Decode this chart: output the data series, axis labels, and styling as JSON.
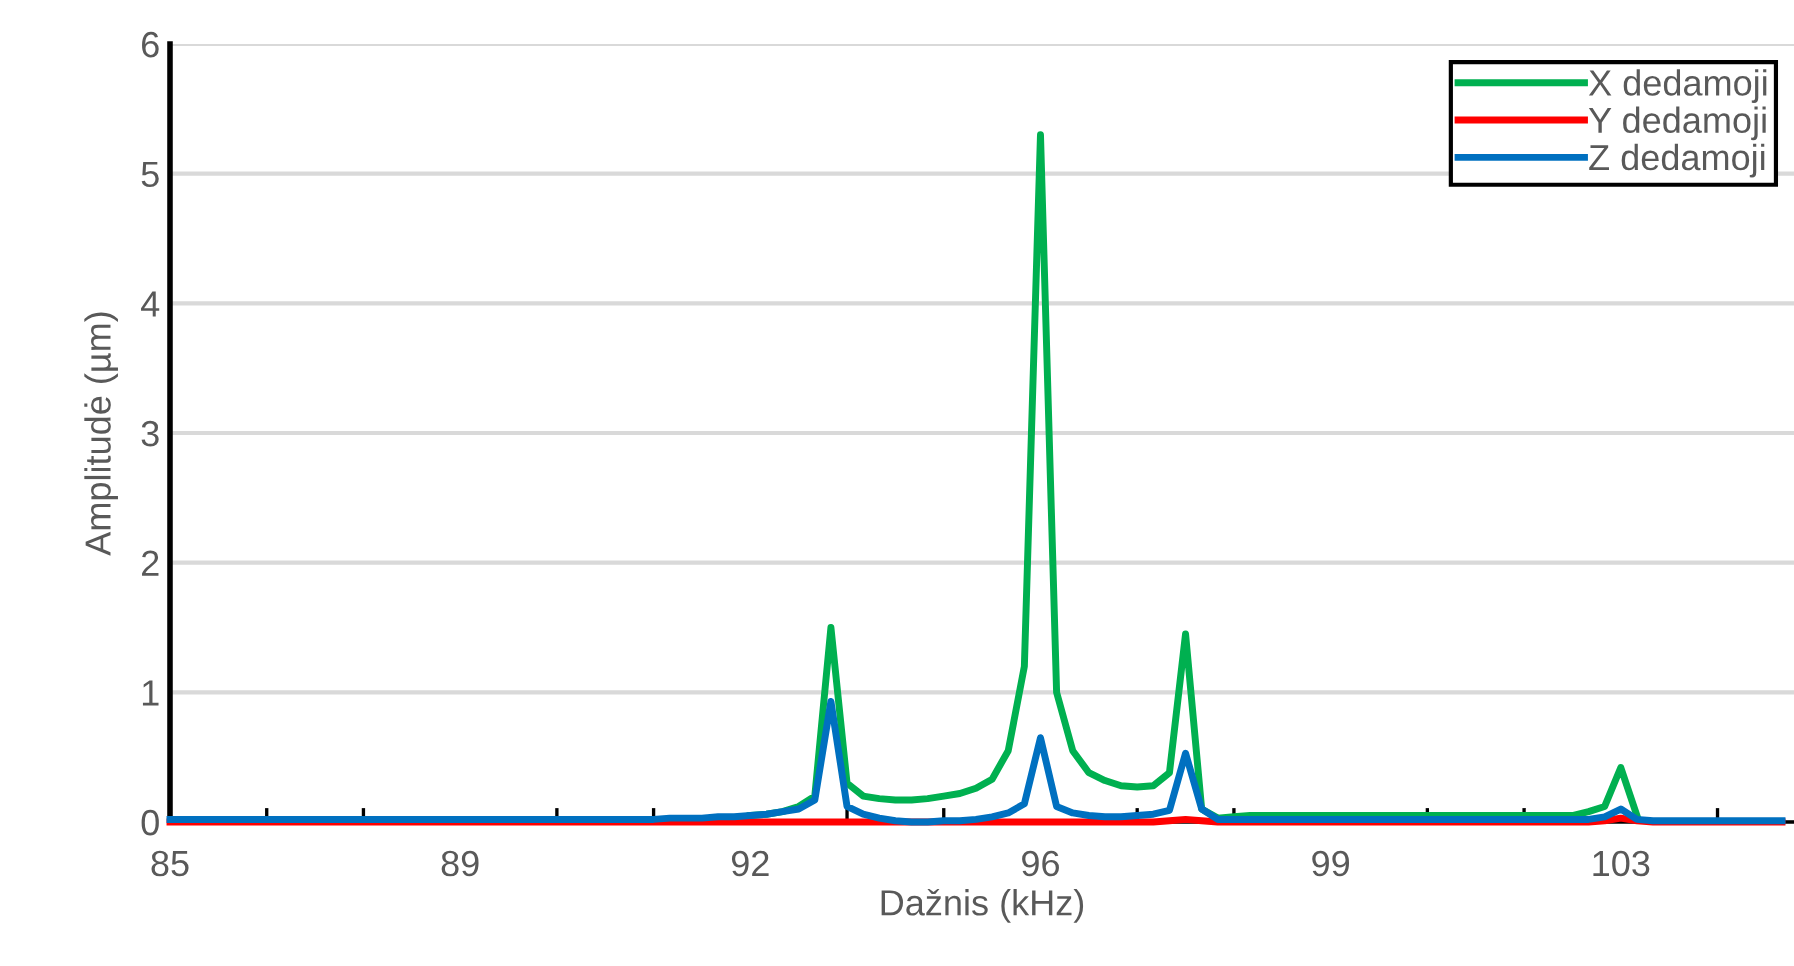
{
  "chart_data": {
    "type": "line",
    "xlabel": "Dažnis (kHz)",
    "ylabel": "Amplitudė (µm)",
    "categories": [
      "85",
      null,
      null,
      null,
      null,
      null,
      null,
      null,
      null,
      null,
      null,
      null,
      null,
      null,
      null,
      null,
      null,
      null,
      "89",
      null,
      null,
      null,
      null,
      null,
      null,
      null,
      null,
      null,
      null,
      null,
      null,
      null,
      null,
      null,
      null,
      null,
      "92",
      null,
      null,
      null,
      null,
      null,
      null,
      null,
      null,
      null,
      null,
      null,
      null,
      null,
      null,
      null,
      null,
      null,
      "96",
      null,
      null,
      null,
      null,
      null,
      null,
      null,
      null,
      null,
      null,
      null,
      null,
      null,
      null,
      null,
      null,
      null,
      "99",
      null,
      null,
      null,
      null,
      null,
      null,
      null,
      null,
      null,
      null,
      null,
      null,
      null,
      null,
      null,
      null,
      null,
      "103",
      null,
      null,
      null,
      null,
      null,
      null,
      null,
      null,
      null,
      null
    ],
    "ylim": [
      0,
      6
    ],
    "yticks": [
      0,
      1,
      2,
      3,
      4,
      5,
      6
    ],
    "grid": "y",
    "legend": "top right",
    "marker": "none",
    "line_style": "solid",
    "series": [
      {
        "name": "X dedamoji",
        "color": "#00b050",
        "values": [
          null,
          null,
          null,
          null,
          null,
          null,
          null,
          null,
          null,
          null,
          null,
          null,
          null,
          null,
          null,
          null,
          null,
          null,
          null,
          null,
          null,
          null,
          null,
          null,
          null,
          null,
          null,
          null,
          null,
          null,
          null,
          null,
          null,
          null,
          null,
          null,
          0.05,
          0.06,
          0.08,
          0.12,
          0.2,
          1.5,
          0.3,
          0.2,
          0.18,
          0.17,
          0.17,
          0.18,
          0.2,
          0.22,
          0.26,
          0.33,
          0.55,
          1.2,
          5.3,
          1.0,
          0.55,
          0.38,
          0.32,
          0.28,
          0.27,
          0.28,
          0.38,
          1.45,
          0.1,
          0.03,
          0.04,
          0.05,
          0.05,
          0.05,
          0.05,
          0.05,
          0.05,
          0.05,
          0.05,
          0.05,
          0.05,
          0.05,
          0.05,
          0.05,
          0.05,
          0.05,
          0.05,
          0.05,
          0.05,
          0.05,
          0.05,
          0.05,
          0.08,
          0.12,
          0.42,
          0.05,
          null,
          null,
          null,
          null,
          null,
          null,
          null,
          null,
          null
        ]
      },
      {
        "name": "Y dedamoji",
        "color": "#ff0000",
        "values": [
          0,
          0,
          0,
          0,
          0,
          0,
          0,
          0,
          0,
          0,
          0,
          0,
          0,
          0,
          0,
          0,
          0,
          0,
          0,
          0,
          0,
          0,
          0,
          0,
          0,
          0,
          0,
          0,
          0,
          0,
          0,
          0,
          0,
          0,
          0,
          0,
          0,
          0,
          0,
          0,
          0,
          0,
          0,
          0,
          0,
          0,
          0,
          0,
          0,
          0,
          0,
          0,
          0,
          0,
          0,
          0,
          0,
          0,
          0,
          0,
          0,
          0,
          0.01,
          0.02,
          0.01,
          0,
          0,
          0,
          0,
          0,
          0,
          0,
          0,
          0,
          0,
          0,
          0,
          0,
          0,
          0,
          0,
          0,
          0,
          0,
          0,
          0,
          0,
          0,
          0,
          0.01,
          0.03,
          0.01,
          0,
          0,
          0,
          0,
          0,
          0,
          0,
          0,
          0
        ]
      },
      {
        "name": "Z dedamoji",
        "color": "#0070c0",
        "values": [
          0.02,
          0.02,
          0.02,
          0.02,
          0.02,
          0.02,
          0.02,
          0.02,
          0.02,
          0.02,
          0.02,
          0.02,
          0.02,
          0.02,
          0.02,
          0.02,
          0.02,
          0.02,
          0.02,
          0.02,
          0.02,
          0.02,
          0.02,
          0.02,
          0.02,
          0.02,
          0.02,
          0.02,
          0.02,
          0.02,
          0.02,
          0.03,
          0.03,
          0.03,
          0.04,
          0.04,
          0.05,
          0.06,
          0.08,
          0.1,
          0.17,
          0.93,
          0.12,
          0.06,
          0.03,
          0.01,
          0,
          0,
          0.01,
          0.01,
          0.02,
          0.04,
          0.07,
          0.14,
          0.65,
          0.12,
          0.07,
          0.05,
          0.04,
          0.04,
          0.05,
          0.06,
          0.09,
          0.53,
          0.1,
          0.02,
          0.02,
          0.02,
          0.02,
          0.02,
          0.02,
          0.02,
          0.02,
          0.02,
          0.02,
          0.02,
          0.02,
          0.02,
          0.02,
          0.02,
          0.02,
          0.02,
          0.02,
          0.02,
          0.02,
          0.02,
          0.02,
          0.02,
          0.02,
          0.04,
          0.1,
          0.02,
          0.01,
          0.01,
          0.01,
          0.01,
          0.01,
          0.01,
          0.01,
          0.01,
          0.01
        ]
      }
    ]
  }
}
